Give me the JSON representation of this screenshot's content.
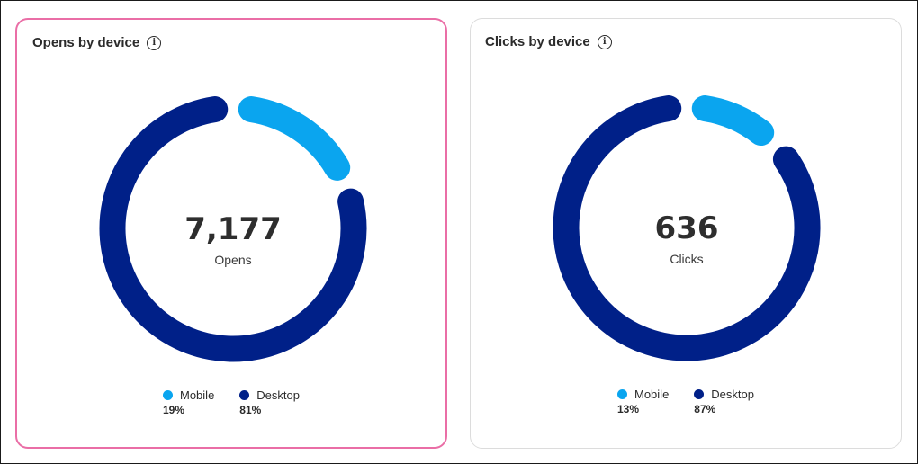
{
  "colors": {
    "mobile": "#0aa5ef",
    "desktop": "#002088",
    "selected_border": "#ea6ea6"
  },
  "chart_data": [
    {
      "type": "pie",
      "variant": "donut",
      "title": "Opens by device",
      "center_value": "7,177",
      "center_label": "Opens",
      "categories": [
        "Mobile",
        "Desktop"
      ],
      "values": [
        19,
        81
      ],
      "labels": [
        "19%",
        "81%"
      ],
      "legend": "bottom"
    },
    {
      "type": "pie",
      "variant": "donut",
      "title": "Clicks by device",
      "center_value": "636",
      "center_label": "Clicks",
      "categories": [
        "Mobile",
        "Desktop"
      ],
      "values": [
        13,
        87
      ],
      "labels": [
        "13%",
        "87%"
      ],
      "legend": "bottom"
    }
  ],
  "info_icon_glyph": "i"
}
